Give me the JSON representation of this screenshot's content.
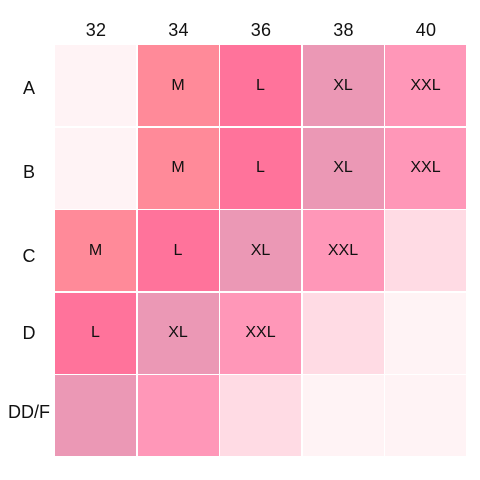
{
  "columns": [
    "32",
    "34",
    "36",
    "38",
    "40"
  ],
  "rows": [
    "A",
    "B",
    "C",
    "D",
    "DD/F"
  ],
  "cells": [
    [
      {
        "label": "",
        "color": "#fff3f5"
      },
      {
        "label": "M",
        "color": "#ff8a99"
      },
      {
        "label": "L",
        "color": "#ff739b"
      },
      {
        "label": "XL",
        "color": "#eb98b5"
      },
      {
        "label": "XXL",
        "color": "#ff97b8"
      }
    ],
    [
      {
        "label": "",
        "color": "#fff3f5"
      },
      {
        "label": "M",
        "color": "#ff8a99"
      },
      {
        "label": "L",
        "color": "#ff739b"
      },
      {
        "label": "XL",
        "color": "#eb98b5"
      },
      {
        "label": "XXL",
        "color": "#ff97b8"
      }
    ],
    [
      {
        "label": "M",
        "color": "#ff8a99"
      },
      {
        "label": "L",
        "color": "#ff739b"
      },
      {
        "label": "XL",
        "color": "#eb98b5"
      },
      {
        "label": "XXL",
        "color": "#ff97b8"
      },
      {
        "label": "",
        "color": "#ffdbe4"
      }
    ],
    [
      {
        "label": "L",
        "color": "#ff739b"
      },
      {
        "label": "XL",
        "color": "#eb98b5"
      },
      {
        "label": "XXL",
        "color": "#ff97b8"
      },
      {
        "label": "",
        "color": "#ffdbe4"
      },
      {
        "label": "",
        "color": "#fff3f5"
      }
    ],
    [
      {
        "label": "",
        "color": "#eb98b5"
      },
      {
        "label": "",
        "color": "#ff97b8"
      },
      {
        "label": "",
        "color": "#ffdbe4"
      },
      {
        "label": "",
        "color": "#fff3f5"
      },
      {
        "label": "",
        "color": "#fff3f5"
      }
    ]
  ]
}
